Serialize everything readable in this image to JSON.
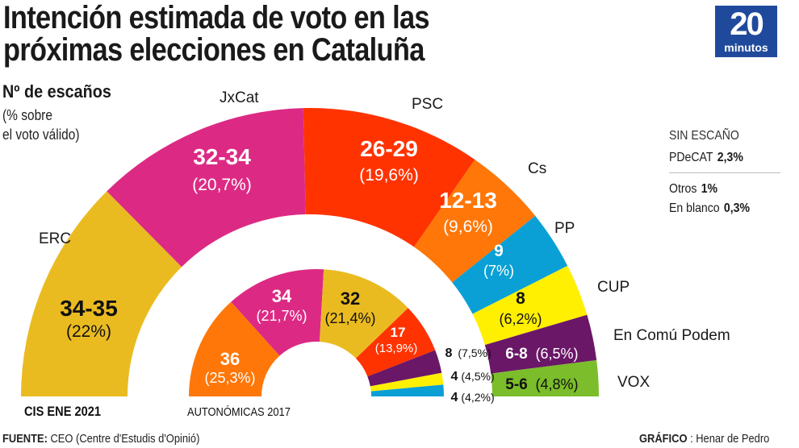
{
  "header": {
    "title_line1": "Intención estimada de voto en las",
    "title_line2": "próximas elecciones en Cataluña",
    "logo_number": "20",
    "logo_word": "minutos",
    "logo_color": "#1f4a9c"
  },
  "legend": {
    "subtitle": "Nº de escaños",
    "note_line1": "(% sobre",
    "note_line2": "el voto válido)"
  },
  "sidebox": {
    "header": "SIN ESCAÑO",
    "rows": [
      {
        "label": "PDeCAT",
        "value": "2,3%"
      },
      {
        "label": "Otros",
        "value": "1%"
      },
      {
        "label": "En blanco",
        "value": "0,3%"
      }
    ]
  },
  "footer": {
    "source_label": "FUENTE:",
    "source_text": "CEO (Centre d'Estudis d'Opinió)",
    "credit_label": "GRÁFICO",
    "credit_text": ": Henar de Pedro"
  },
  "chart_data": [
    {
      "type": "pie",
      "subtype": "hemicycle",
      "caption": "CIS ENE 2021",
      "seat_total": 135,
      "slices": [
        {
          "party": "ERC",
          "seats": "34-35",
          "seats_mid": 34.5,
          "pct": "22%",
          "color": "#eabb21",
          "text_color": "#111111"
        },
        {
          "party": "JxCat",
          "seats": "32-34",
          "seats_mid": 33,
          "pct": "20,7%",
          "color": "#dc2a84",
          "text_color": "#ffffff"
        },
        {
          "party": "PSC",
          "seats": "26-29",
          "seats_mid": 27.5,
          "pct": "19,6%",
          "color": "#ff3300",
          "text_color": "#ffffff"
        },
        {
          "party": "Cs",
          "seats": "12-13",
          "seats_mid": 12.5,
          "pct": "9,6%",
          "color": "#ff7708",
          "text_color": "#ffffff"
        },
        {
          "party": "PP",
          "seats": "9",
          "seats_mid": 9,
          "pct": "7%",
          "color": "#0aa0d6",
          "text_color": "#ffffff"
        },
        {
          "party": "CUP",
          "seats": "8",
          "seats_mid": 8,
          "pct": "6,2%",
          "color": "#ffef00",
          "text_color": "#111111"
        },
        {
          "party": "En Comú Podem",
          "seats": "6-8",
          "seats_mid": 7,
          "pct": "6,5%",
          "color": "#6a1767",
          "text_color": "#ffffff"
        },
        {
          "party": "VOX",
          "seats": "5-6",
          "seats_mid": 5.5,
          "pct": "4,8%",
          "color": "#7bbd2a",
          "text_color": "#111111"
        }
      ]
    },
    {
      "type": "pie",
      "subtype": "hemicycle",
      "caption": "AUTONÓMICAS 2017",
      "seat_total": 135,
      "slices": [
        {
          "party": "Cs",
          "seats": "36",
          "seats_mid": 36,
          "pct": "25,3%",
          "color": "#ff7708",
          "text_color": "#ffffff"
        },
        {
          "party": "JxCat",
          "seats": "34",
          "seats_mid": 34,
          "pct": "21,7%",
          "color": "#dc2a84",
          "text_color": "#ffffff"
        },
        {
          "party": "ERC",
          "seats": "32",
          "seats_mid": 32,
          "pct": "21,4%",
          "color": "#eabb21",
          "text_color": "#111111"
        },
        {
          "party": "PSC",
          "seats": "17",
          "seats_mid": 17,
          "pct": "13,9%",
          "color": "#ff3300",
          "text_color": "#ffffff"
        },
        {
          "party": "En Comú Podem",
          "seats": "8",
          "seats_mid": 8,
          "pct": "7,5%",
          "color": "#6a1767",
          "text_color": "#111111"
        },
        {
          "party": "CUP",
          "seats": "4",
          "seats_mid": 4,
          "pct": "4,5%",
          "color": "#ffef00",
          "text_color": "#111111"
        },
        {
          "party": "PP",
          "seats": "4",
          "seats_mid": 4,
          "pct": "4,2%",
          "color": "#0aa0d6",
          "text_color": "#111111"
        }
      ]
    }
  ]
}
